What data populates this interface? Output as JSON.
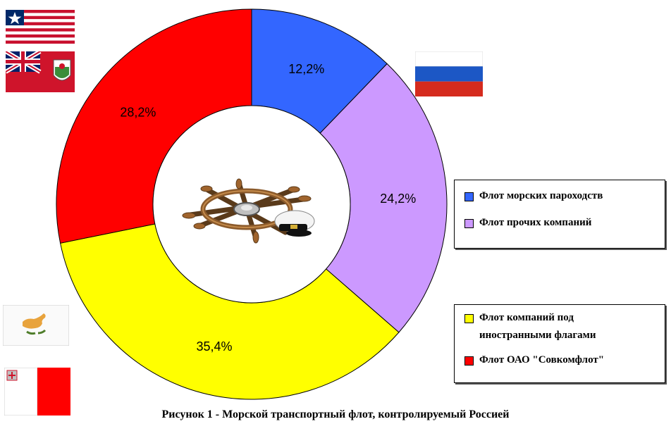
{
  "chart_data": {
    "type": "pie",
    "categories": [
      "Флот морских пароходств",
      "Флот прочих компаний",
      "Флот компаний под иностранными флагами",
      "Флот ОАО \"Совкомфлот\""
    ],
    "values": [
      12.2,
      24.2,
      35.4,
      28.2
    ],
    "data_labels": [
      "12,2%",
      "24,2%",
      "35,4%",
      "28,2%"
    ],
    "colors": [
      "#3366ff",
      "#cc99ff",
      "#ffff00",
      "#ff0000"
    ],
    "style": "donut"
  },
  "legend": {
    "group1": [
      {
        "label": "Флот морских пароходств",
        "color": "#3366ff"
      },
      {
        "label": "Флот прочих компаний",
        "color": "#cc99ff"
      }
    ],
    "group2": [
      {
        "label_line1": "Флот компаний под",
        "label_line2": "иностранными флагами",
        "color": "#ffff00"
      },
      {
        "label": "Флот ОАО \"Совкомфлот\"",
        "color": "#ff0000"
      }
    ]
  },
  "caption": "Рисунок 1 -  Морской транспортный флот, контролируемый Россией",
  "images": {
    "center": "ship-wheel-and-captain-cap",
    "flags": [
      "liberia-flag",
      "bermuda-flag",
      "russia-flag",
      "cyprus-flag",
      "malta-flag"
    ]
  }
}
